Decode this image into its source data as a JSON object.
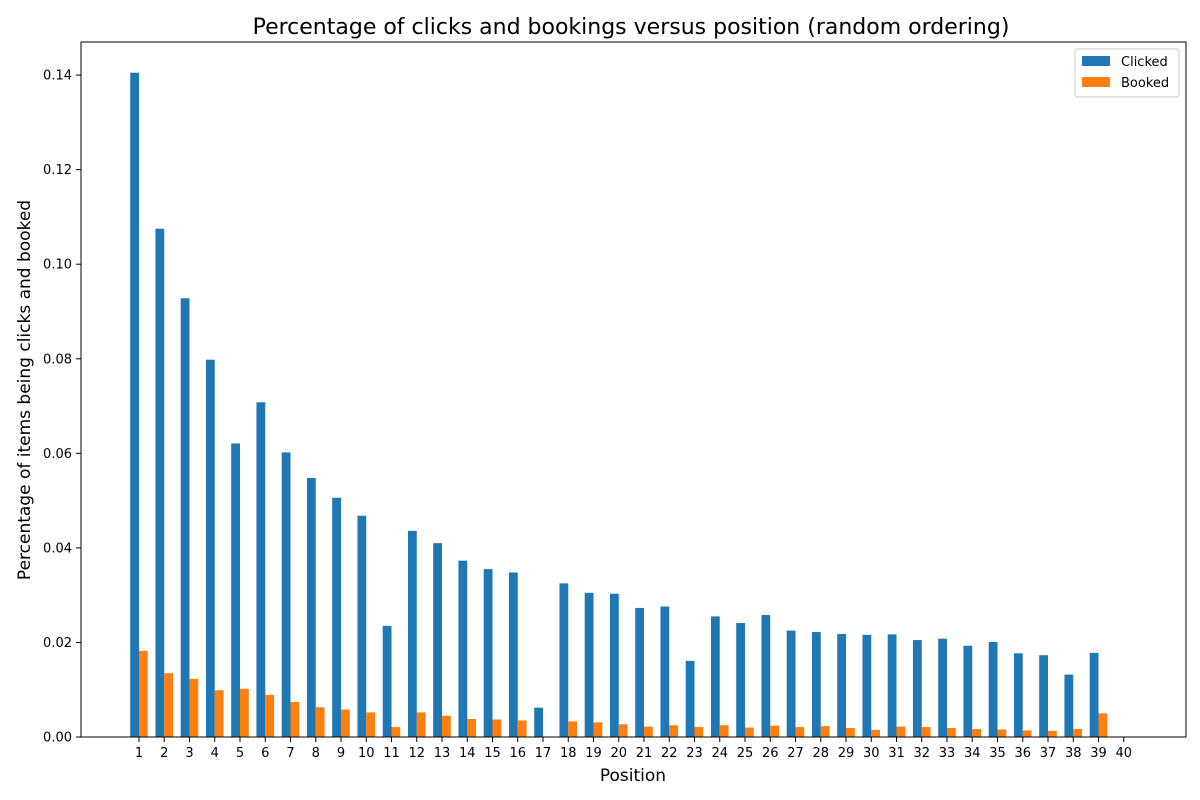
{
  "chart_data": {
    "type": "bar",
    "title": "Percentage of clicks and bookings versus position (random ordering)",
    "xlabel": "Position",
    "ylabel": "Percentage of items being clicks and booked",
    "ylim": [
      0,
      0.147
    ],
    "yticks": [
      "0.00",
      "0.02",
      "0.04",
      "0.06",
      "0.08",
      "0.10",
      "0.12",
      "0.14"
    ],
    "categories": [
      "1",
      "2",
      "3",
      "4",
      "5",
      "6",
      "7",
      "8",
      "9",
      "10",
      "11",
      "12",
      "13",
      "14",
      "15",
      "16",
      "17",
      "18",
      "19",
      "20",
      "21",
      "22",
      "23",
      "24",
      "25",
      "26",
      "27",
      "28",
      "29",
      "30",
      "31",
      "32",
      "33",
      "34",
      "35",
      "36",
      "37",
      "38",
      "39",
      "40"
    ],
    "legend_position": "top-right",
    "grid": false,
    "series": [
      {
        "name": "Clicked",
        "color": "#1f77b4",
        "values": [
          0.1405,
          0.1075,
          0.0928,
          0.0798,
          0.0621,
          0.0708,
          0.0602,
          0.0548,
          0.0506,
          0.0468,
          0.0235,
          0.0436,
          0.041,
          0.0373,
          0.0355,
          0.0348,
          0.0062,
          0.0325,
          0.0305,
          0.0303,
          0.0273,
          0.0276,
          0.0161,
          0.0255,
          0.0241,
          0.0258,
          0.0225,
          0.0222,
          0.0218,
          0.0216,
          0.0217,
          0.0205,
          0.0208,
          0.0193,
          0.0201,
          0.0177,
          0.0173,
          0.0132,
          0.0178,
          0
        ]
      },
      {
        "name": "Booked",
        "color": "#ff7f0e",
        "values": [
          0.0182,
          0.0135,
          0.0123,
          0.0099,
          0.0102,
          0.0089,
          0.0074,
          0.0063,
          0.0058,
          0.0052,
          0.0021,
          0.0052,
          0.0045,
          0.0038,
          0.0037,
          0.0035,
          0,
          0.0033,
          0.0031,
          0.0027,
          0.0022,
          0.0025,
          0.0021,
          0.0025,
          0.002,
          0.0024,
          0.0021,
          0.0023,
          0.0019,
          0.0015,
          0.0022,
          0.0021,
          0.0019,
          0.0017,
          0.0016,
          0.0014,
          0.0013,
          0.0017,
          0.005,
          0
        ]
      }
    ]
  }
}
